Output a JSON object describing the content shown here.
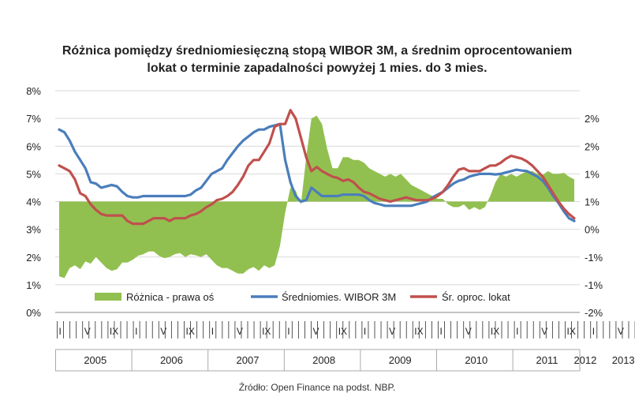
{
  "chart_data": {
    "type": "line",
    "title": "Różnica pomiędzy średniomiesięczną stopą WIBOR 3M, a średnim oprocentowaniem lokat o terminie zapadalności powyżej 1 mies. do 3 mies.",
    "title_lines": [
      "Różnica pomiędzy średniomiesięczną stopą WIBOR 3M, a średnim oprocentowaniem",
      "lokat o terminie zapadalności powyżej 1 mies. do 3 mies."
    ],
    "source": "Źródło: Open Finance na podst. NBP.",
    "y_left": {
      "ticks": [
        "0%",
        "1%",
        "2%",
        "3%",
        "4%",
        "5%",
        "6%",
        "7%",
        "8%"
      ],
      "range": [
        0,
        8
      ]
    },
    "y_right": {
      "ticks": [
        "-2%",
        "-1%",
        "-1%",
        "0%",
        "1%",
        "1%",
        "2%",
        "2%"
      ],
      "range": [
        -2,
        2
      ]
    },
    "x": {
      "years": [
        "2005",
        "2006",
        "2007",
        "2008",
        "2009",
        "2010",
        "2011",
        "2012",
        "2013"
      ],
      "month_ticks": [
        "I",
        "V",
        "IX"
      ]
    },
    "legend_position": "bottom-inside",
    "series": [
      {
        "name": "Różnica - prawa oś",
        "axis": "right",
        "kind": "area",
        "color": "#92c050",
        "values": [
          -1.35,
          -1.38,
          -1.2,
          -1.15,
          -1.22,
          -1.08,
          -1.12,
          -1.0,
          -1.1,
          -1.2,
          -1.25,
          -1.22,
          -1.1,
          -1.1,
          -1.05,
          -0.98,
          -0.95,
          -0.9,
          -0.9,
          -0.98,
          -1.02,
          -1.0,
          -0.95,
          -0.93,
          -1.0,
          -0.95,
          -0.97,
          -1.0,
          -0.95,
          -1.05,
          -1.15,
          -1.2,
          -1.2,
          -1.25,
          -1.3,
          -1.3,
          -1.22,
          -1.18,
          -1.25,
          -1.15,
          -1.2,
          -1.15,
          -0.8,
          -0.2,
          0.25,
          0.2,
          -0.05,
          0.8,
          1.5,
          1.55,
          1.4,
          0.95,
          0.6,
          0.6,
          0.8,
          0.8,
          0.75,
          0.75,
          0.7,
          0.6,
          0.55,
          0.5,
          0.45,
          0.5,
          0.45,
          0.5,
          0.4,
          0.3,
          0.25,
          0.2,
          0.15,
          0.1,
          0.05,
          0.05,
          -0.05,
          -0.1,
          -0.1,
          -0.05,
          -0.15,
          -0.1,
          -0.15,
          -0.1,
          0.1,
          0.35,
          0.5,
          0.45,
          0.5,
          0.45,
          0.5,
          0.55,
          0.55,
          0.5,
          0.48,
          0.55,
          0.5,
          0.5,
          0.52,
          0.45,
          0.4
        ]
      },
      {
        "name": "Średniomies. WIBOR 3M",
        "axis": "left",
        "kind": "line",
        "color": "#4a7ebb",
        "values": [
          6.6,
          6.5,
          6.2,
          5.8,
          5.5,
          5.2,
          4.7,
          4.65,
          4.5,
          4.55,
          4.6,
          4.55,
          4.35,
          4.2,
          4.15,
          4.15,
          4.2,
          4.2,
          4.2,
          4.2,
          4.2,
          4.2,
          4.2,
          4.2,
          4.2,
          4.25,
          4.4,
          4.5,
          4.75,
          5.0,
          5.1,
          5.2,
          5.5,
          5.75,
          6.0,
          6.2,
          6.35,
          6.5,
          6.6,
          6.6,
          6.7,
          6.75,
          6.8,
          5.5,
          4.7,
          4.2,
          4.0,
          4.05,
          4.5,
          4.35,
          4.2,
          4.2,
          4.2,
          4.2,
          4.25,
          4.25,
          4.25,
          4.25,
          4.2,
          4.05,
          3.95,
          3.9,
          3.85,
          3.85,
          3.85,
          3.85,
          3.85,
          3.85,
          3.9,
          3.95,
          4.0,
          4.15,
          4.25,
          4.35,
          4.5,
          4.65,
          4.75,
          4.8,
          4.9,
          4.95,
          5.0,
          5.0,
          5.0,
          4.98,
          5.0,
          5.05,
          5.1,
          5.15,
          5.12,
          5.1,
          5.0,
          4.9,
          4.75,
          4.5,
          4.2,
          3.95,
          3.65,
          3.4,
          3.3
        ]
      },
      {
        "name": "Śr. oproc. lokat",
        "axis": "left",
        "kind": "line",
        "color": "#c0504d",
        "values": [
          5.3,
          5.2,
          5.1,
          4.8,
          4.3,
          4.2,
          3.9,
          3.7,
          3.55,
          3.5,
          3.5,
          3.5,
          3.5,
          3.3,
          3.2,
          3.2,
          3.2,
          3.3,
          3.4,
          3.4,
          3.4,
          3.3,
          3.4,
          3.4,
          3.4,
          3.5,
          3.55,
          3.65,
          3.8,
          3.9,
          4.05,
          4.1,
          4.2,
          4.35,
          4.6,
          4.9,
          5.3,
          5.5,
          5.5,
          5.8,
          6.1,
          6.7,
          6.8,
          6.8,
          7.3,
          7.0,
          6.3,
          5.6,
          5.1,
          5.25,
          5.1,
          5.0,
          4.9,
          4.85,
          4.75,
          4.8,
          4.7,
          4.5,
          4.35,
          4.3,
          4.2,
          4.1,
          4.05,
          4.0,
          4.05,
          4.1,
          4.15,
          4.1,
          4.05,
          4.05,
          4.05,
          4.1,
          4.2,
          4.35,
          4.6,
          4.9,
          5.15,
          5.2,
          5.1,
          5.1,
          5.1,
          5.2,
          5.3,
          5.3,
          5.4,
          5.55,
          5.65,
          5.6,
          5.55,
          5.45,
          5.3,
          5.1,
          4.9,
          4.6,
          4.3,
          4.0,
          3.75,
          3.55,
          3.4
        ]
      }
    ]
  }
}
